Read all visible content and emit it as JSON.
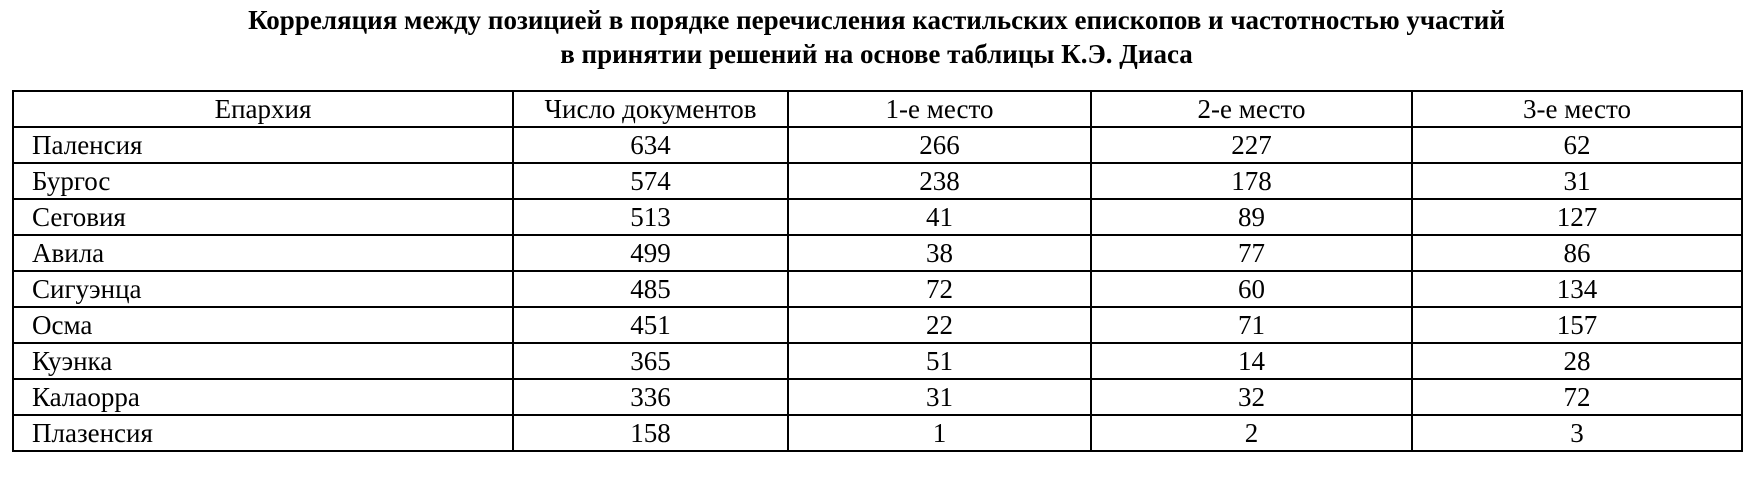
{
  "title": {
    "line1": "Корреляция между позицией в порядке перечисления кастильских епископов и частотностью участий",
    "line2": "в принятии решений на основе таблицы К.Э. Диаса"
  },
  "table": {
    "headers": [
      "Епархия",
      "Число документов",
      "1-е место",
      "2-е место",
      "3-е место"
    ],
    "rows": [
      [
        "Паленсия",
        "634",
        "266",
        "227",
        "62"
      ],
      [
        "Бургос",
        "574",
        "238",
        "178",
        "31"
      ],
      [
        "Сеговия",
        "513",
        "41",
        "89",
        "127"
      ],
      [
        "Авила",
        "499",
        "38",
        "77",
        "86"
      ],
      [
        "Сигуэнца",
        "485",
        "72",
        "60",
        "134"
      ],
      [
        "Осма",
        "451",
        "22",
        "71",
        "157"
      ],
      [
        "Куэнка",
        "365",
        "51",
        "14",
        "28"
      ],
      [
        "Калаорра",
        "336",
        "31",
        "32",
        "72"
      ],
      [
        "Плазенсия",
        "158",
        "1",
        "2",
        "3"
      ]
    ]
  }
}
